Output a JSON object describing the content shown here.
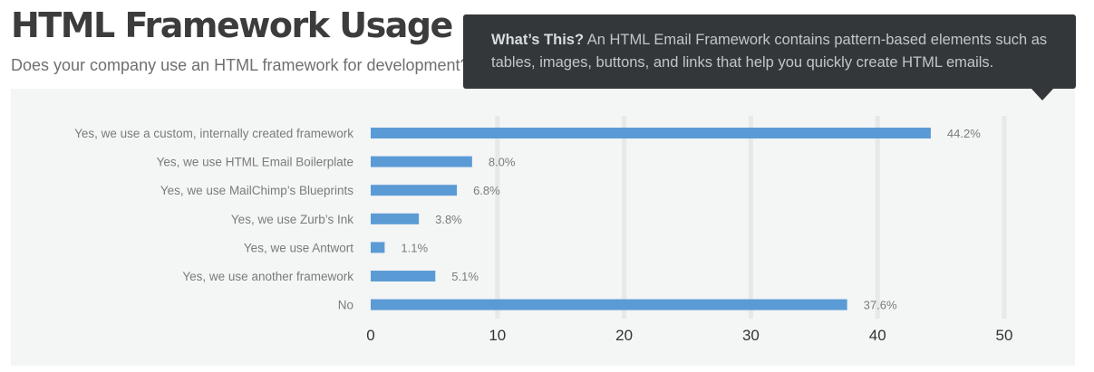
{
  "header": {
    "title": "HTML Framework Usage",
    "subtitle": "Does your company use an HTML framework for development?"
  },
  "tooltip": {
    "heading": "What’s This?",
    "text": "An HTML Email Framework contains pattern-based elements such as tables, images, buttons, and links that help you quickly create HTML emails."
  },
  "colors": {
    "bar": "#5b9bd5",
    "grid": "#e6e8e9",
    "panel": "#f4f5f5",
    "tooltip": "#33373a"
  },
  "chart_data": {
    "type": "bar",
    "orientation": "horizontal",
    "categories": [
      "Yes, we use a custom, internally created framework",
      "Yes, we use HTML Email Boilerplate",
      "Yes, we use MailChimp’s Blueprints",
      "Yes, we use Zurb’s Ink",
      "Yes, we use Antwort",
      "Yes, we use another framework",
      "No"
    ],
    "values": [
      44.2,
      8.0,
      6.8,
      3.8,
      1.1,
      5.1,
      37.6
    ],
    "value_labels": [
      "44.2%",
      "8.0%",
      "6.8%",
      "3.8%",
      "1.1%",
      "5.1%",
      "37.6%"
    ],
    "xlim": [
      0,
      50
    ],
    "ticks": [
      0,
      10,
      20,
      30,
      40,
      50
    ],
    "tick_labels": [
      "0",
      "10",
      "20",
      "30",
      "40",
      "50"
    ],
    "grid": true
  }
}
